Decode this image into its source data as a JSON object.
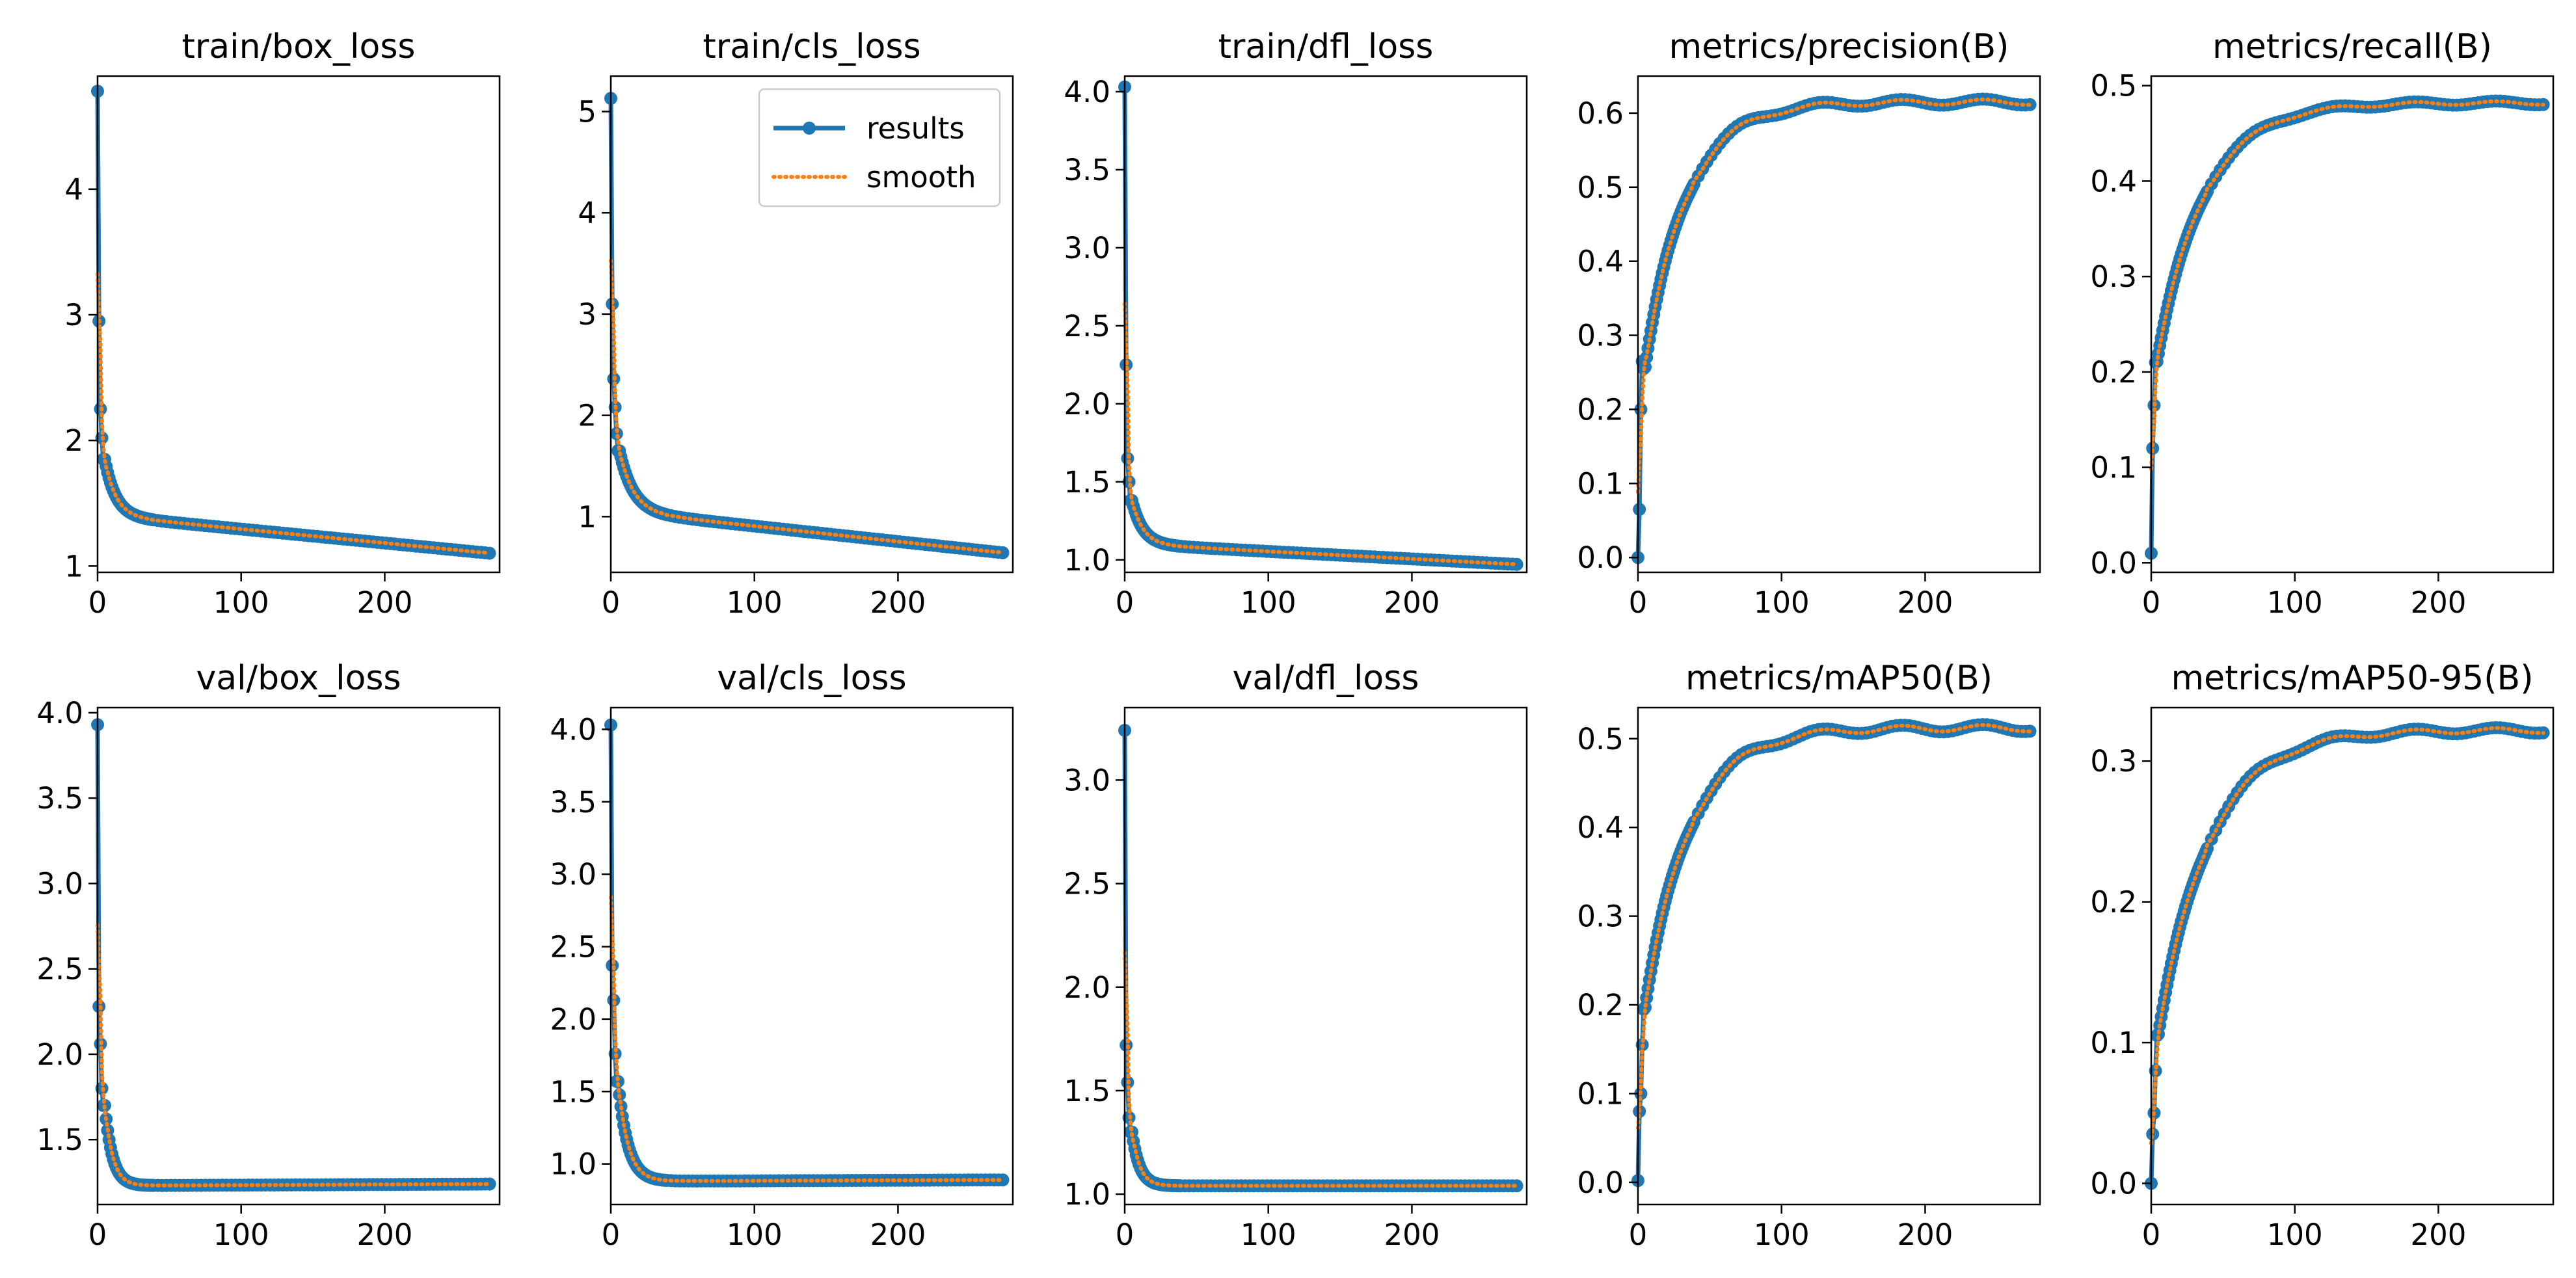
{
  "figure": {
    "legend": {
      "results_label": "results",
      "smooth_label": "smooth"
    },
    "colors": {
      "results": "#1f77b4",
      "smooth": "#ff7f0e"
    }
  },
  "chart_data": [
    {
      "type": "line",
      "title": "train/box_loss",
      "xlim": [
        0,
        280
      ],
      "ylim": [
        0.95,
        4.9
      ],
      "xticks": [
        0,
        100,
        200
      ],
      "yticks": [
        1,
        2,
        3,
        4
      ],
      "shape": "decay",
      "start": [
        4.78,
        2.95,
        2.25,
        2.02,
        1.85
      ],
      "tail": [
        1.4,
        1.1
      ],
      "k": 20,
      "end_x": 275,
      "series": [
        {
          "name": "results"
        },
        {
          "name": "smooth"
        }
      ]
    },
    {
      "type": "line",
      "title": "train/cls_loss",
      "xlim": [
        0,
        280
      ],
      "ylim": [
        0.45,
        5.35
      ],
      "xticks": [
        0,
        100,
        200
      ],
      "yticks": [
        1,
        2,
        3,
        4,
        5
      ],
      "shape": "decay",
      "start": [
        5.13,
        3.1,
        2.36,
        2.08,
        1.82,
        1.65
      ],
      "tail": [
        1.05,
        0.64
      ],
      "k": 25,
      "end_x": 275,
      "legend": "top-right",
      "series": [
        {
          "name": "results"
        },
        {
          "name": "smooth"
        }
      ]
    },
    {
      "type": "line",
      "title": "train/dfl_loss",
      "xlim": [
        0,
        280
      ],
      "ylim": [
        0.92,
        4.1
      ],
      "xticks": [
        0,
        100,
        200
      ],
      "yticks": [
        "1.0",
        "1.5",
        "2.0",
        "2.5",
        "3.0",
        "3.5",
        "4.0"
      ],
      "shape": "decay",
      "start": [
        4.03,
        2.25,
        1.65,
        1.5,
        1.38
      ],
      "tail": [
        1.1,
        0.97
      ],
      "k": 20,
      "end_x": 275,
      "series": [
        {
          "name": "results"
        },
        {
          "name": "smooth"
        }
      ]
    },
    {
      "type": "line",
      "title": "metrics/precision(B)",
      "xlim": [
        0,
        280
      ],
      "ylim": [
        -0.02,
        0.65
      ],
      "xticks": [
        0,
        100,
        200
      ],
      "yticks": [
        "0.0",
        "0.1",
        "0.2",
        "0.3",
        "0.4",
        "0.5",
        "0.6"
      ],
      "shape": "rise",
      "start": [
        0.0,
        0.065,
        0.2,
        0.265,
        0.255
      ],
      "plateau": 0.615,
      "k": 28,
      "end_x": 275,
      "series": [
        {
          "name": "results"
        },
        {
          "name": "smooth"
        }
      ]
    },
    {
      "type": "line",
      "title": "metrics/recall(B)",
      "xlim": [
        0,
        280
      ],
      "ylim": [
        -0.01,
        0.51
      ],
      "xticks": [
        0,
        100,
        200
      ],
      "yticks": [
        "0.0",
        "0.1",
        "0.2",
        "0.3",
        "0.4",
        "0.5"
      ],
      "shape": "rise",
      "start": [
        0.01,
        0.12,
        0.165,
        0.21
      ],
      "plateau": 0.482,
      "k": 32,
      "end_x": 275,
      "series": [
        {
          "name": "results"
        },
        {
          "name": "smooth"
        }
      ]
    },
    {
      "type": "line",
      "title": "val/box_loss",
      "xlim": [
        0,
        280
      ],
      "ylim": [
        1.12,
        4.03
      ],
      "xticks": [
        0,
        100,
        200
      ],
      "yticks": [
        "1.5",
        "2.0",
        "2.5",
        "3.0",
        "3.5",
        "4.0"
      ],
      "shape": "decay",
      "start": [
        3.93,
        2.28,
        2.06,
        1.8,
        1.7
      ],
      "tail": [
        1.23,
        1.24
      ],
      "k": 14,
      "end_x": 275,
      "series": [
        {
          "name": "results"
        },
        {
          "name": "smooth"
        }
      ]
    },
    {
      "type": "line",
      "title": "val/cls_loss",
      "xlim": [
        0,
        280
      ],
      "ylim": [
        0.72,
        4.15
      ],
      "xticks": [
        0,
        100,
        200
      ],
      "yticks": [
        "1.0",
        "1.5",
        "2.0",
        "2.5",
        "3.0",
        "3.5",
        "4.0"
      ],
      "shape": "decay",
      "start": [
        4.03,
        2.37,
        2.13,
        1.76,
        1.57
      ],
      "tail": [
        0.88,
        0.89
      ],
      "k": 18,
      "end_x": 275,
      "series": [
        {
          "name": "results"
        },
        {
          "name": "smooth"
        }
      ]
    },
    {
      "type": "line",
      "title": "val/dfl_loss",
      "xlim": [
        0,
        280
      ],
      "ylim": [
        0.95,
        3.35
      ],
      "xticks": [
        0,
        100,
        200
      ],
      "yticks": [
        "1.0",
        "1.5",
        "2.0",
        "2.5",
        "3.0"
      ],
      "shape": "decay",
      "start": [
        3.24,
        1.72,
        1.54,
        1.37,
        1.3
      ],
      "tail": [
        1.04,
        1.04
      ],
      "k": 14,
      "end_x": 275,
      "series": [
        {
          "name": "results"
        },
        {
          "name": "smooth"
        }
      ]
    },
    {
      "type": "line",
      "title": "metrics/mAP50(B)",
      "xlim": [
        0,
        280
      ],
      "ylim": [
        -0.025,
        0.535
      ],
      "xticks": [
        0,
        100,
        200
      ],
      "yticks": [
        "0.0",
        "0.1",
        "0.2",
        "0.3",
        "0.4",
        "0.5"
      ],
      "shape": "rise",
      "start": [
        0.002,
        0.08,
        0.1,
        0.155,
        0.195
      ],
      "plateau": 0.512,
      "k": 30,
      "end_x": 275,
      "series": [
        {
          "name": "results"
        },
        {
          "name": "smooth"
        }
      ]
    },
    {
      "type": "line",
      "title": "metrics/mAP50-95(B)",
      "xlim": [
        0,
        280
      ],
      "ylim": [
        -0.015,
        0.338
      ],
      "xticks": [
        0,
        100,
        200
      ],
      "yticks": [
        "0.0",
        "0.1",
        "0.2",
        "0.3"
      ],
      "shape": "rise",
      "start": [
        0.0,
        0.035,
        0.05,
        0.08,
        0.105
      ],
      "plateau": 0.322,
      "k": 35,
      "end_x": 275,
      "series": [
        {
          "name": "results"
        },
        {
          "name": "smooth"
        }
      ]
    }
  ]
}
